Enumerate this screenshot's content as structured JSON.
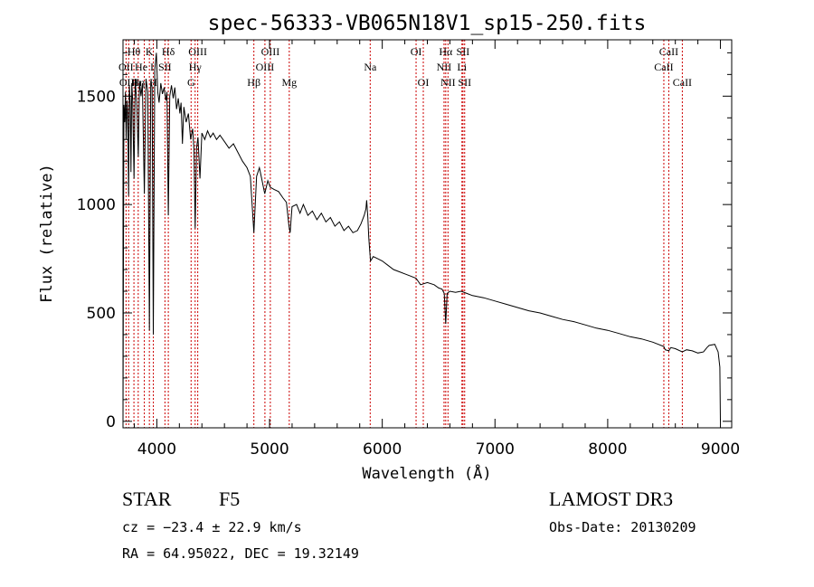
{
  "chart_data": {
    "type": "line",
    "title": "spec-56333-VB065N18V1_sp15-250.fits",
    "xlabel": "Wavelength (Å)",
    "ylabel": "Flux (relative)",
    "xlim": [
      3700,
      9100
    ],
    "ylim": [
      -30,
      1760
    ],
    "x_ticks": [
      4000,
      5000,
      6000,
      7000,
      8000,
      9000
    ],
    "y_ticks": [
      0,
      500,
      1000,
      1500
    ],
    "x_tick_labels": [
      "4000",
      "5000",
      "6000",
      "7000",
      "8000",
      "9000"
    ],
    "y_tick_labels": [
      "0",
      "500",
      "1000",
      "1500"
    ],
    "series": [
      {
        "name": "spectrum",
        "color": "#000000",
        "points": [
          [
            3700,
            0
          ],
          [
            3703,
            620
          ],
          [
            3708,
            1460
          ],
          [
            3715,
            1380
          ],
          [
            3722,
            1520
          ],
          [
            3728,
            1300
          ],
          [
            3735,
            1480
          ],
          [
            3742,
            1420
          ],
          [
            3750,
            1040
          ],
          [
            3756,
            1550
          ],
          [
            3764,
            1470
          ],
          [
            3771,
            1150
          ],
          [
            3778,
            1560
          ],
          [
            3786,
            1480
          ],
          [
            3798,
            1120
          ],
          [
            3808,
            1580
          ],
          [
            3822,
            1470
          ],
          [
            3836,
            1220
          ],
          [
            3846,
            1570
          ],
          [
            3860,
            1500
          ],
          [
            3872,
            1560
          ],
          [
            3889,
            1050
          ],
          [
            3904,
            1580
          ],
          [
            3920,
            1520
          ],
          [
            3934,
            420
          ],
          [
            3946,
            1570
          ],
          [
            3958,
            1540
          ],
          [
            3969,
            400
          ],
          [
            3982,
            1620
          ],
          [
            3996,
            1700
          ],
          [
            4008,
            1520
          ],
          [
            4020,
            1470
          ],
          [
            4035,
            1560
          ],
          [
            4050,
            1510
          ],
          [
            4065,
            1540
          ],
          [
            4080,
            1480
          ],
          [
            4090,
            1520
          ],
          [
            4102,
            950
          ],
          [
            4115,
            1500
          ],
          [
            4130,
            1550
          ],
          [
            4145,
            1490
          ],
          [
            4160,
            1540
          ],
          [
            4175,
            1440
          ],
          [
            4190,
            1490
          ],
          [
            4205,
            1420
          ],
          [
            4215,
            1470
          ],
          [
            4227,
            1280
          ],
          [
            4240,
            1450
          ],
          [
            4260,
            1380
          ],
          [
            4280,
            1420
          ],
          [
            4300,
            1300
          ],
          [
            4318,
            1350
          ],
          [
            4330,
            1250
          ],
          [
            4340,
            890
          ],
          [
            4352,
            1260
          ],
          [
            4365,
            1310
          ],
          [
            4383,
            1120
          ],
          [
            4400,
            1330
          ],
          [
            4425,
            1300
          ],
          [
            4450,
            1340
          ],
          [
            4475,
            1310
          ],
          [
            4500,
            1330
          ],
          [
            4530,
            1300
          ],
          [
            4560,
            1320
          ],
          [
            4600,
            1290
          ],
          [
            4640,
            1260
          ],
          [
            4680,
            1280
          ],
          [
            4720,
            1240
          ],
          [
            4760,
            1200
          ],
          [
            4800,
            1170
          ],
          [
            4830,
            1130
          ],
          [
            4861,
            870
          ],
          [
            4885,
            1130
          ],
          [
            4910,
            1170
          ],
          [
            4930,
            1120
          ],
          [
            4957,
            1050
          ],
          [
            4985,
            1110
          ],
          [
            5007,
            1080
          ],
          [
            5040,
            1070
          ],
          [
            5080,
            1060
          ],
          [
            5120,
            1030
          ],
          [
            5150,
            1010
          ],
          [
            5172,
            900
          ],
          [
            5183,
            870
          ],
          [
            5200,
            990
          ],
          [
            5240,
            1000
          ],
          [
            5270,
            960
          ],
          [
            5300,
            1000
          ],
          [
            5340,
            950
          ],
          [
            5380,
            970
          ],
          [
            5420,
            930
          ],
          [
            5460,
            960
          ],
          [
            5500,
            920
          ],
          [
            5540,
            940
          ],
          [
            5580,
            900
          ],
          [
            5620,
            920
          ],
          [
            5660,
            880
          ],
          [
            5700,
            900
          ],
          [
            5740,
            870
          ],
          [
            5780,
            880
          ],
          [
            5810,
            910
          ],
          [
            5840,
            950
          ],
          [
            5855,
            980
          ],
          [
            5862,
            1020
          ],
          [
            5872,
            940
          ],
          [
            5880,
            850
          ],
          [
            5890,
            780
          ],
          [
            5896,
            740
          ],
          [
            5920,
            760
          ],
          [
            5960,
            750
          ],
          [
            6000,
            740
          ],
          [
            6050,
            720
          ],
          [
            6100,
            700
          ],
          [
            6150,
            690
          ],
          [
            6200,
            680
          ],
          [
            6250,
            670
          ],
          [
            6300,
            660
          ],
          [
            6340,
            630
          ],
          [
            6400,
            640
          ],
          [
            6460,
            630
          ],
          [
            6500,
            615
          ],
          [
            6530,
            610
          ],
          [
            6550,
            590
          ],
          [
            6563,
            450
          ],
          [
            6576,
            590
          ],
          [
            6600,
            600
          ],
          [
            6650,
            595
          ],
          [
            6700,
            600
          ],
          [
            6750,
            590
          ],
          [
            6800,
            580
          ],
          [
            6900,
            570
          ],
          [
            7000,
            555
          ],
          [
            7100,
            540
          ],
          [
            7200,
            525
          ],
          [
            7300,
            510
          ],
          [
            7400,
            500
          ],
          [
            7500,
            485
          ],
          [
            7600,
            470
          ],
          [
            7700,
            460
          ],
          [
            7800,
            445
          ],
          [
            7900,
            430
          ],
          [
            8000,
            420
          ],
          [
            8100,
            405
          ],
          [
            8200,
            390
          ],
          [
            8300,
            380
          ],
          [
            8400,
            365
          ],
          [
            8498,
            345
          ],
          [
            8510,
            330
          ],
          [
            8542,
            325
          ],
          [
            8560,
            340
          ],
          [
            8600,
            335
          ],
          [
            8662,
            320
          ],
          [
            8700,
            330
          ],
          [
            8750,
            325
          ],
          [
            8800,
            315
          ],
          [
            8850,
            320
          ],
          [
            8880,
            340
          ],
          [
            8900,
            350
          ],
          [
            8950,
            355
          ],
          [
            8980,
            320
          ],
          [
            8995,
            250
          ],
          [
            9000,
            0
          ]
        ]
      }
    ],
    "line_markers": [
      {
        "wl": 3727,
        "label": "OII",
        "row": 1
      },
      {
        "wl": 3750,
        "label": "OIII",
        "row": 2
      },
      {
        "wl": 3797,
        "label": "Hθ",
        "row": 0
      },
      {
        "wl": 3835,
        "label": "Hη",
        "row": 2
      },
      {
        "wl": 3889,
        "label": "He I",
        "row": 1
      },
      {
        "wl": 3934,
        "label": "K",
        "row": 0
      },
      {
        "wl": 3969,
        "label": "H",
        "row": 2
      },
      {
        "wl": 4072,
        "label": "SII",
        "row": 1
      },
      {
        "wl": 4102,
        "label": "Hδ",
        "row": 0
      },
      {
        "wl": 4304,
        "label": "G",
        "row": 2
      },
      {
        "wl": 4340,
        "label": "Hγ",
        "row": 1
      },
      {
        "wl": 4363,
        "label": "OIII",
        "row": 0
      },
      {
        "wl": 4861,
        "label": "Hβ",
        "row": 2
      },
      {
        "wl": 4959,
        "label": "OIII",
        "row": 1
      },
      {
        "wl": 5007,
        "label": "OIII",
        "row": 0
      },
      {
        "wl": 5175,
        "label": "Mg",
        "row": 2
      },
      {
        "wl": 5893,
        "label": "Na",
        "row": 1
      },
      {
        "wl": 6300,
        "label": "OI",
        "row": 0
      },
      {
        "wl": 6364,
        "label": "OI",
        "row": 2
      },
      {
        "wl": 6548,
        "label": "NII",
        "row": 1
      },
      {
        "wl": 6563,
        "label": "Hα",
        "row": 0
      },
      {
        "wl": 6583,
        "label": "NII",
        "row": 2
      },
      {
        "wl": 6707,
        "label": "Li",
        "row": 1
      },
      {
        "wl": 6716,
        "label": "SII",
        "row": 0
      },
      {
        "wl": 6731,
        "label": "SII",
        "row": 2
      },
      {
        "wl": 8498,
        "label": "CaII",
        "row": 1
      },
      {
        "wl": 8542,
        "label": "CaII",
        "row": 0
      },
      {
        "wl": 8662,
        "label": "CaII",
        "row": 2
      }
    ],
    "marker_color": "#cc0000"
  },
  "info": {
    "object_class": "STAR",
    "subclass": "F5",
    "survey": "LAMOST DR3",
    "cz": "cz = −23.4 ± 22.9 km/s",
    "obs_date": "Obs-Date: 20130209",
    "coords": "RA =  64.95022, DEC =  19.32149"
  }
}
